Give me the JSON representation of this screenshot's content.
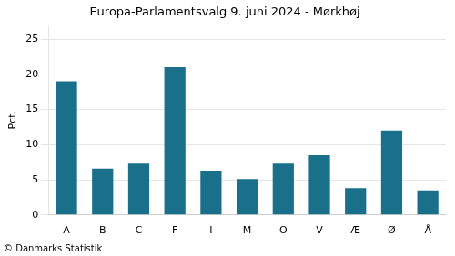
{
  "chart_data": {
    "type": "bar",
    "title": "Europa-Parlamentsvalg 9. juni 2024 - Mørkhøj",
    "categories": [
      "A",
      "B",
      "C",
      "F",
      "I",
      "M",
      "O",
      "V",
      "Æ",
      "Ø",
      "Å"
    ],
    "values": [
      19.0,
      6.6,
      7.3,
      21.0,
      6.3,
      5.1,
      7.3,
      8.5,
      3.8,
      12.0,
      3.5
    ],
    "color": "#1a6f8a",
    "ylabel": "Pct.",
    "footer": "© Danmarks Statistik",
    "ylim": [
      0,
      27
    ],
    "yticks": [
      0,
      5,
      10,
      15,
      20,
      25
    ],
    "grid": true
  }
}
